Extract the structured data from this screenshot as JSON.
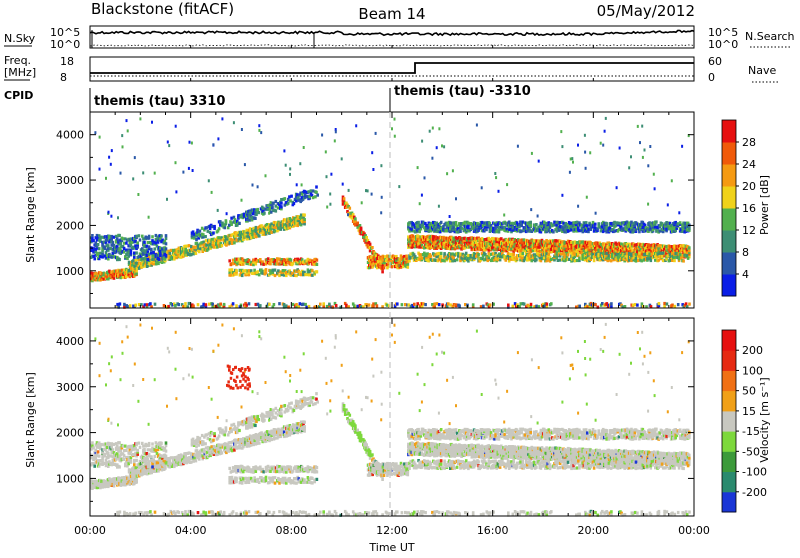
{
  "header": {
    "left": "Blackstone (fitACF)",
    "center": "Beam 14",
    "right": "05/May/2012"
  },
  "strip_labels": {
    "nsky": "N.Sky",
    "nsky_tick_hi": "10^5",
    "nsky_tick_lo": "10^0",
    "nsearch": "N.Search",
    "nsearch_tick_hi": "10^5",
    "nsearch_tick_lo": "10^0",
    "freq_line1": "Freq.",
    "freq_line2": "[MHz]",
    "freq_tick_hi": "18",
    "freq_tick_lo": "8",
    "nave": "Nave",
    "nave_tick_hi": "60",
    "nave_tick_lo": "0",
    "cpid": "CPID",
    "mode_left": "themis (tau) 3310",
    "mode_right": "themis (tau) -3310"
  },
  "chart_data": [
    {
      "type": "heatmap",
      "panel": "power",
      "ylabel": "Slant Range [km]",
      "ylim": [
        180,
        4500
      ],
      "yticks": [
        "1000",
        "2000",
        "3000",
        "4000"
      ],
      "xlim": [
        0,
        24
      ],
      "colorbar": {
        "label": "Power [dB]",
        "ticks": [
          "4",
          "8",
          "12",
          "16",
          "20",
          "24",
          "28"
        ],
        "colors": [
          "#0a1ee6",
          "#2a58a8",
          "#3d8e74",
          "#52b04e",
          "#f0d21a",
          "#f59a12",
          "#f05a0a",
          "#e61010"
        ]
      }
    },
    {
      "type": "heatmap",
      "panel": "velocity",
      "ylabel": "Slant Range [km]",
      "ylim": [
        180,
        4500
      ],
      "yticks": [
        "1000",
        "2000",
        "3000",
        "4000"
      ],
      "xlim": [
        0,
        24
      ],
      "xticks": [
        "00:00",
        "04:00",
        "08:00",
        "12:00",
        "16:00",
        "20:00",
        "00:00"
      ],
      "xlabel": "Time UT",
      "colorbar": {
        "label": "Velocity [m s⁻¹]",
        "ticks": [
          "200",
          "100",
          "50",
          "15",
          "-15",
          "-50",
          "-100",
          "-200"
        ],
        "colors": [
          "#1a36d6",
          "#2a8a6e",
          "#3c9a3a",
          "#7dd83c",
          "#c8c8c0",
          "#f0a018",
          "#f07014",
          "#e62a12",
          "#e61010"
        ]
      }
    }
  ]
}
